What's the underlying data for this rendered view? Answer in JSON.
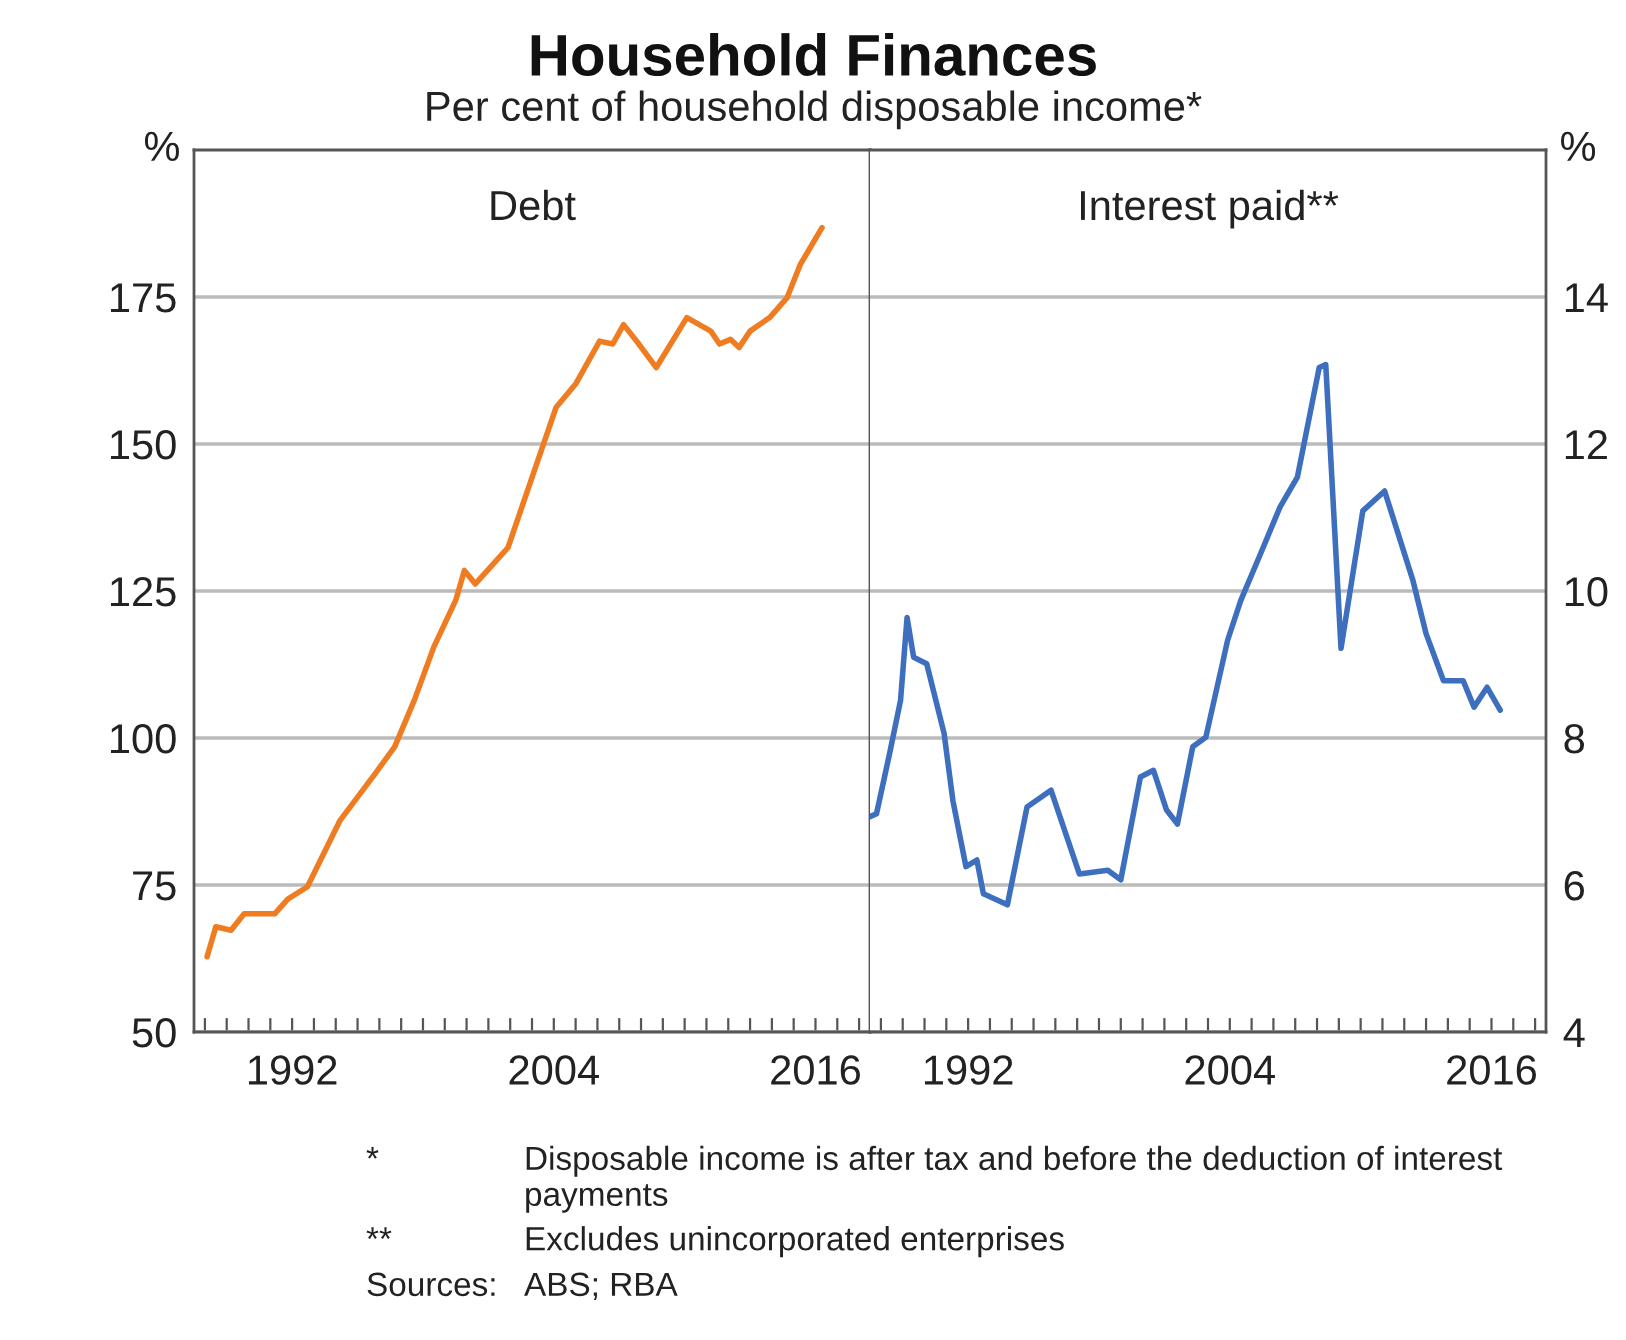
{
  "chart_data": [
    {
      "type": "line",
      "title": "Household Finances",
      "subtitle": "Per cent of household disposable income*",
      "ylabel": "%",
      "annotations": [
        "*\tDisposable income is after tax and before the deduction of interest payments",
        "**\tExcludes unincorporated enterprises",
        "Sources:\tABS; RBA"
      ],
      "xlim": [
        1987.5,
        2018.5
      ],
      "xticks": [
        {
          "value": 1988,
          "label": null
        },
        {
          "value": 1989,
          "label": null
        },
        {
          "value": 1990,
          "label": null
        },
        {
          "value": 1991,
          "label": null
        },
        1992,
        {
          "value": 1993,
          "label": null
        },
        {
          "value": 1994,
          "label": null
        },
        {
          "value": 1995,
          "label": null
        },
        {
          "value": 1996,
          "label": null
        },
        {
          "value": 1997,
          "label": null
        },
        {
          "value": 1998,
          "label": null
        },
        {
          "value": 1999,
          "label": null
        },
        {
          "value": 2000,
          "label": null
        },
        {
          "value": 2001,
          "label": null
        },
        {
          "value": 2002,
          "label": null
        },
        {
          "value": 2003,
          "label": null
        },
        2004,
        {
          "value": 2005,
          "label": null
        },
        {
          "value": 2006,
          "label": null
        },
        {
          "value": 2007,
          "label": null
        },
        {
          "value": 2008,
          "label": null
        },
        {
          "value": 2009,
          "label": null
        },
        {
          "value": 2010,
          "label": null
        },
        {
          "value": 2011,
          "label": null
        },
        {
          "value": 2012,
          "label": null
        },
        {
          "value": 2013,
          "label": null
        },
        {
          "value": 2014,
          "label": null
        },
        {
          "value": 2015,
          "label": null
        },
        2016,
        {
          "value": 2017,
          "label": null
        },
        {
          "value": 2018,
          "label": null
        }
      ],
      "ylim": [
        50,
        200
      ],
      "yticks": [
        50,
        75,
        100,
        125,
        150,
        175
      ],
      "grid": "y",
      "legend": false,
      "series": [
        {
          "name": "Debt",
          "color": "#f07c22",
          "x": [
            1988.1,
            1988.5,
            1989.2,
            1989.8,
            1991.2,
            1991.8,
            1992.7,
            1994.2,
            1995.8,
            1996.7,
            1997.6,
            1998.5,
            1999.5,
            1999.9,
            2000.4,
            2001.9,
            2004.1,
            2005.0,
            2006.1,
            2006.7,
            2007.2,
            2007.9,
            2008.7,
            2010.1,
            2011.2,
            2011.6,
            2012.1,
            2012.5,
            2013.0,
            2013.9,
            2014.7,
            2015.3,
            2016.3
          ],
          "values": [
            62.8,
            67.9,
            67.3,
            70.1,
            70.1,
            72.6,
            74.7,
            86,
            93.9,
            98.5,
            106.4,
            115.5,
            123.4,
            128.5,
            126.2,
            132.4,
            156.2,
            160.2,
            167.5,
            167,
            170.3,
            167,
            163,
            171.5,
            169.2,
            167,
            167.8,
            166.4,
            169.2,
            171.5,
            174.9,
            180.5,
            186.8
          ]
        }
      ]
    },
    {
      "type": "line",
      "y2label": "%",
      "xlim": [
        1987.5,
        2018.5
      ],
      "xticks": [
        {
          "value": 1988,
          "label": null
        },
        {
          "value": 1989,
          "label": null
        },
        {
          "value": 1990,
          "label": null
        },
        {
          "value": 1991,
          "label": null
        },
        1992,
        {
          "value": 1993,
          "label": null
        },
        {
          "value": 1994,
          "label": null
        },
        {
          "value": 1995,
          "label": null
        },
        {
          "value": 1996,
          "label": null
        },
        {
          "value": 1997,
          "label": null
        },
        {
          "value": 1998,
          "label": null
        },
        {
          "value": 1999,
          "label": null
        },
        {
          "value": 2000,
          "label": null
        },
        {
          "value": 2001,
          "label": null
        },
        {
          "value": 2002,
          "label": null
        },
        {
          "value": 2003,
          "label": null
        },
        2004,
        {
          "value": 2005,
          "label": null
        },
        {
          "value": 2006,
          "label": null
        },
        {
          "value": 2007,
          "label": null
        },
        {
          "value": 2008,
          "label": null
        },
        {
          "value": 2009,
          "label": null
        },
        {
          "value": 2010,
          "label": null
        },
        {
          "value": 2011,
          "label": null
        },
        {
          "value": 2012,
          "label": null
        },
        {
          "value": 2013,
          "label": null
        },
        {
          "value": 2014,
          "label": null
        },
        {
          "value": 2015,
          "label": null
        },
        2016,
        {
          "value": 2017,
          "label": null
        },
        {
          "value": 2018,
          "label": null
        }
      ],
      "y2lim": [
        4,
        16
      ],
      "y2ticks": [
        4,
        6,
        8,
        10,
        12,
        14
      ],
      "grid": "y",
      "legend": false,
      "series": [
        {
          "name": "Interest paid**",
          "color": "#3e6fbf",
          "axis": "y2",
          "x": [
            1987.5,
            1987.8,
            1988.4,
            1988.9,
            1989.2,
            1989.5,
            1990.1,
            1990.9,
            1991.3,
            1991.9,
            1992.4,
            1992.7,
            1993.8,
            1994.7,
            1995.8,
            1997.1,
            1998.4,
            1999.0,
            1999.9,
            2000.5,
            2001.1,
            2001.6,
            2002.3,
            2002.9,
            2003.9,
            2004.5,
            2005.4,
            2006.3,
            2007.1,
            2008.1,
            2008.4,
            2009.1,
            2010.1,
            2011.1,
            2012.4,
            2013.0,
            2013.8,
            2014.7,
            2015.2,
            2015.8,
            2016.4
          ],
          "values": [
            6.93,
            6.97,
            7.79,
            8.51,
            9.64,
            9.1,
            9.01,
            8.06,
            7.15,
            6.25,
            6.34,
            5.88,
            5.73,
            7.06,
            7.29,
            6.15,
            6.2,
            6.07,
            7.47,
            7.56,
            7.02,
            6.83,
            7.88,
            8.01,
            9.33,
            9.87,
            10.5,
            11.14,
            11.55,
            13.04,
            13.08,
            9.22,
            11.09,
            11.36,
            10.14,
            9.42,
            8.78,
            8.78,
            8.42,
            8.69,
            8.38
          ]
        }
      ]
    }
  ]
}
